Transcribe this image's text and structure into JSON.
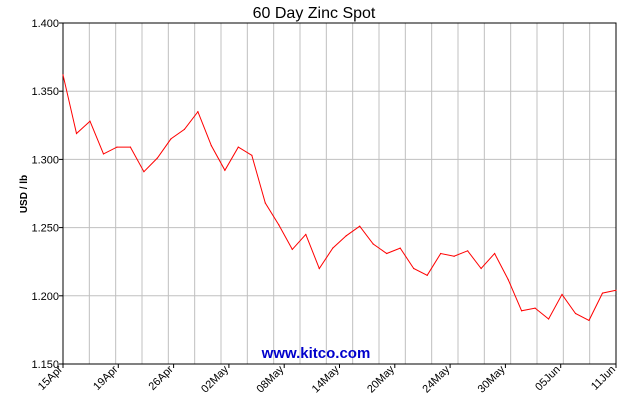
{
  "chart_data": {
    "type": "line",
    "title": "60 Day Zinc Spot",
    "ylabel": "USD / lb",
    "xlabel": "",
    "ylim": [
      1.15,
      1.4
    ],
    "yticks": [
      "1.400",
      "1.350",
      "1.300",
      "1.250",
      "1.200",
      "1.150"
    ],
    "xticks": [
      "15Apr",
      "19Apr",
      "26Apr",
      "02May",
      "08May",
      "14May",
      "20May",
      "24May",
      "30May",
      "05Jun",
      "11Jun"
    ],
    "grid": true,
    "watermark": "www.kitco.com",
    "colors": {
      "line": "#ff0000",
      "grid": "#c0c0c0",
      "watermark": "#0000cc"
    },
    "series": [
      {
        "values": [
          1.362,
          1.319,
          1.328,
          1.304,
          1.309,
          1.309,
          1.291,
          1.301,
          1.315,
          1.322,
          1.335,
          1.31,
          1.292,
          1.309,
          1.303,
          1.268,
          1.252,
          1.234,
          1.245,
          1.22,
          1.235,
          1.244,
          1.251,
          1.238,
          1.231,
          1.235,
          1.22,
          1.215,
          1.231,
          1.229,
          1.233,
          1.22,
          1.231,
          1.212,
          1.189,
          1.191,
          1.183,
          1.201,
          1.187,
          1.182,
          1.202,
          1.204
        ]
      }
    ]
  }
}
